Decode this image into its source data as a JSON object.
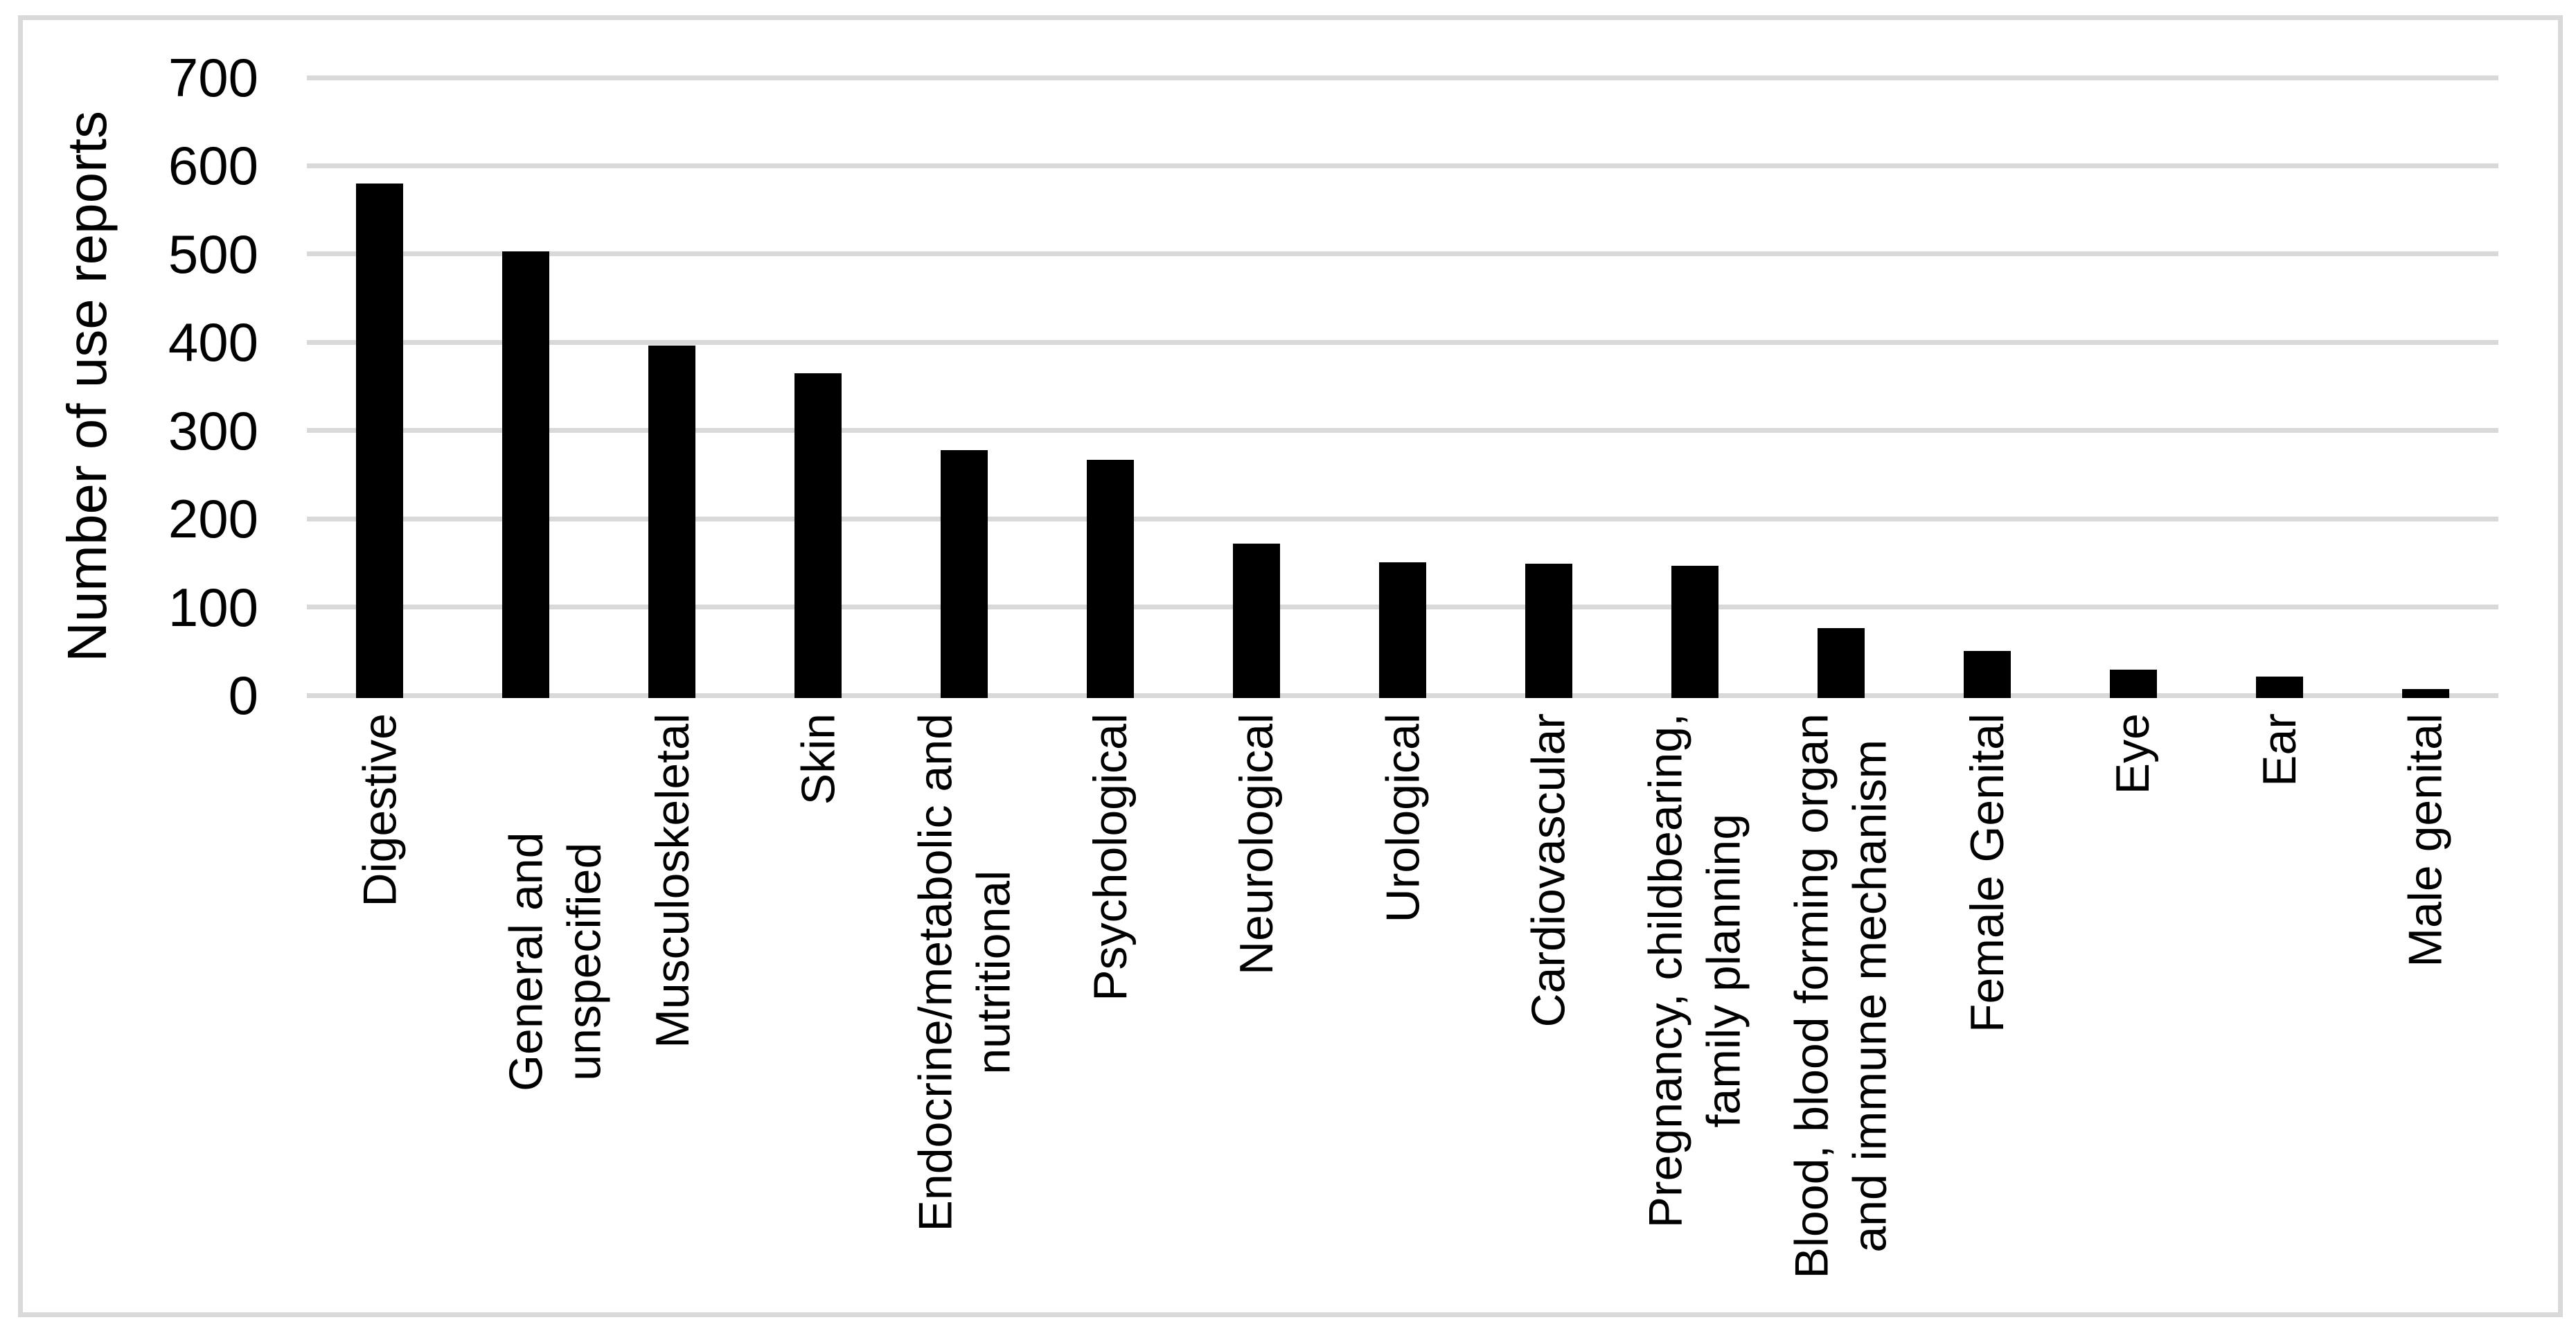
{
  "chart_data": {
    "type": "bar",
    "title": "",
    "xlabel": "",
    "ylabel": "Number of use reports",
    "categories": [
      "Digestive",
      "General and unspecified",
      "Musculoskeletal",
      "Skin",
      "Endocrine/metabolic and\nnutritional",
      "Psychological",
      "Neurological",
      "Urological",
      "Cardiovascular",
      "Pregnancy, childbearing,\nfamily planning",
      "Blood, blood forming organ\nand immune mechanism",
      "Female Genital",
      "Eye",
      "Ear",
      "Male genital"
    ],
    "values": [
      580,
      503,
      396,
      365,
      278,
      267,
      172,
      151,
      149,
      147,
      76,
      50,
      29,
      21,
      7
    ],
    "ylim": [
      0,
      700
    ],
    "yticks": [
      0,
      100,
      200,
      300,
      400,
      500,
      600,
      700
    ],
    "grid": "horizontal-only",
    "legend": "none",
    "bar_color": "#000000",
    "gridline_color": "#d9d9d9",
    "border_color": "#d9d9d9",
    "text_color": "#000000"
  }
}
